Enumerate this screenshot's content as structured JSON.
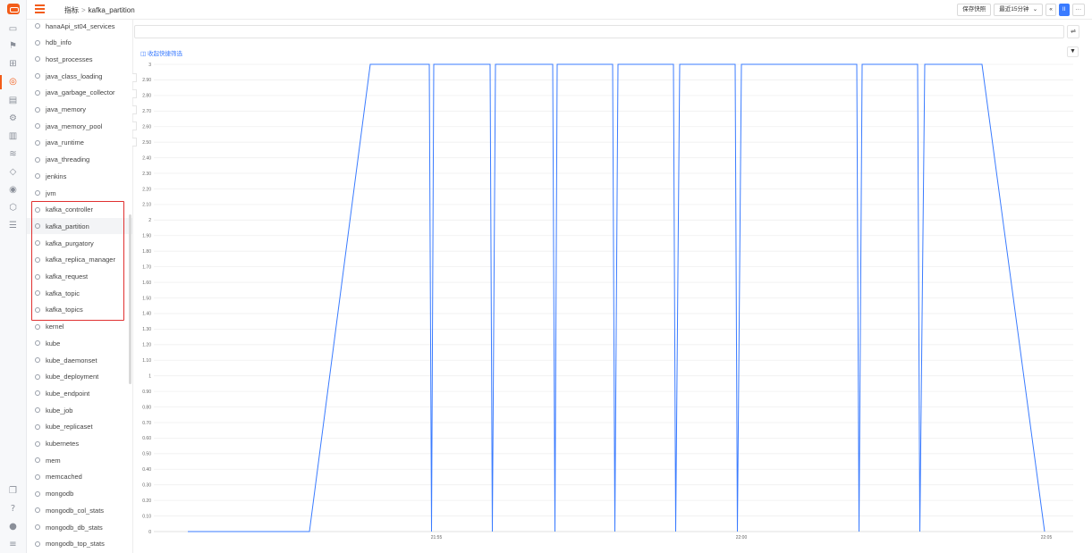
{
  "rail": {
    "icons": [
      "app-logo",
      "monitor-icon",
      "flag-icon",
      "grid-icon",
      "compass-icon",
      "document-icon",
      "settings-icon",
      "building-icon",
      "signal-icon",
      "shield-icon",
      "fingerprint-icon",
      "security-icon",
      "sliders-icon",
      "copy-icon",
      "help-icon",
      "user-icon",
      "menu-icon"
    ]
  },
  "topbar": {
    "breadcrumb_root": "指标",
    "breadcrumb_current": "kafka_partition",
    "save_snapshot": "保存快照",
    "time_range": "最近15分钟",
    "time_range_caret": "⌄",
    "prev_label": "«",
    "pause_label": "II",
    "more_label": "···"
  },
  "filter": {
    "quick_filter": "收起快捷筛选",
    "toggle_label": "⇌",
    "filter_icon": "▼"
  },
  "sidebar": {
    "items": [
      "hanaApi_st04_services",
      "hdb_info",
      "host_processes",
      "java_class_loading",
      "java_garbage_collector",
      "java_memory",
      "java_memory_pool",
      "java_runtime",
      "java_threading",
      "jenkins",
      "jvm",
      "kafka_controller",
      "kafka_partition",
      "kafka_purgatory",
      "kafka_replica_manager",
      "kafka_request",
      "kafka_topic",
      "kafka_topics",
      "kernel",
      "kube",
      "kube_daemonset",
      "kube_deployment",
      "kube_endpoint",
      "kube_job",
      "kube_replicaset",
      "kubernetes",
      "mem",
      "memcached",
      "mongodb",
      "mongodb_col_stats",
      "mongodb_db_stats",
      "mongodb_top_stats"
    ],
    "selected": "kafka_partition"
  },
  "chart_data": {
    "type": "line",
    "title": "",
    "xlabel": "",
    "ylabel": "",
    "ylim": [
      0,
      3
    ],
    "y_ticks": [
      "0",
      "0.10",
      "0.20",
      "0.30",
      "0.40",
      "0.50",
      "0.60",
      "0.70",
      "0.80",
      "0.90",
      "1",
      "1.10",
      "1.20",
      "1.30",
      "1.40",
      "1.50",
      "1.60",
      "1.70",
      "1.80",
      "1.90",
      "2",
      "2.10",
      "2.20",
      "2.30",
      "2.40",
      "2.50",
      "2.60",
      "2.70",
      "2.80",
      "2.90",
      "3"
    ],
    "x_ticks": [
      "21:55",
      "22:00",
      "22:05"
    ],
    "x_tick_minutes": [
      0,
      5,
      10
    ],
    "grid": true,
    "color": "#3a7bff",
    "series": [
      {
        "points": [
          [
            "21:51",
            0
          ],
          [
            "21:52",
            0
          ],
          [
            "21:53",
            3
          ],
          [
            "21:54",
            3
          ],
          [
            "21:55",
            3
          ],
          [
            "21:55",
            0
          ],
          [
            "21:55",
            3
          ],
          [
            "21:56",
            3
          ],
          [
            "21:56",
            0
          ],
          [
            "21:56",
            3
          ],
          [
            "21:57",
            3
          ],
          [
            "21:57",
            0
          ],
          [
            "21:57",
            3
          ],
          [
            "21:58",
            3
          ],
          [
            "21:58",
            0
          ],
          [
            "21:58",
            3
          ],
          [
            "21:59",
            3
          ],
          [
            "21:59",
            0
          ],
          [
            "21:59",
            3
          ],
          [
            "22:00",
            3
          ],
          [
            "22:00",
            0
          ],
          [
            "22:00",
            3
          ],
          [
            "22:02",
            3
          ],
          [
            "22:02",
            0
          ],
          [
            "22:02",
            3
          ],
          [
            "22:03",
            3
          ],
          [
            "22:03",
            0
          ],
          [
            "22:03",
            3
          ],
          [
            "22:04",
            3
          ],
          [
            "22:05",
            0
          ]
        ]
      }
    ]
  }
}
